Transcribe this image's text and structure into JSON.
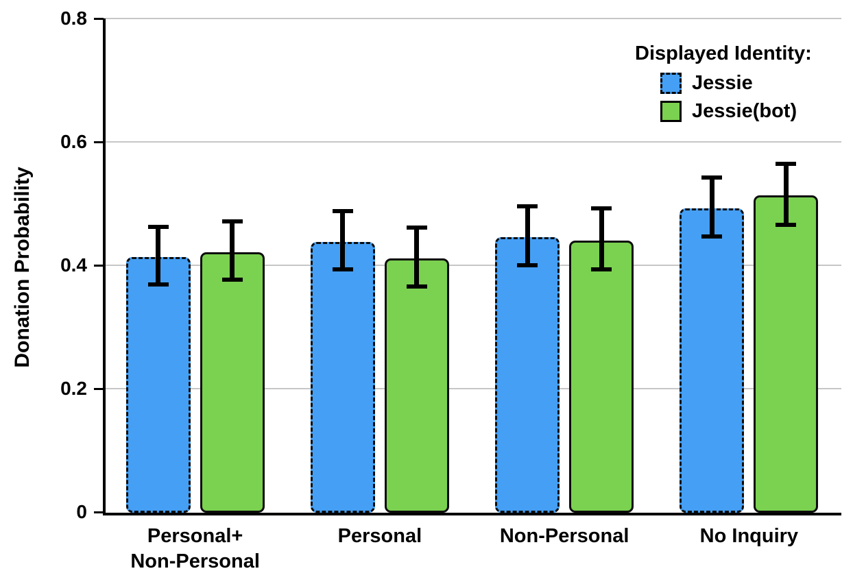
{
  "chart_data": {
    "type": "bar",
    "title": "",
    "xlabel": "",
    "ylabel": "Donation Probability",
    "ylim": [
      0,
      0.8
    ],
    "yticks": [
      0,
      0.2,
      0.4,
      0.6,
      0.8
    ],
    "ytick_labels": [
      "0",
      "0.2",
      "0.4",
      "0.6",
      "0.8"
    ],
    "grid": true,
    "grid_color": "#c6c6c6",
    "categories": [
      "Personal+\nNon-Personal",
      "Personal",
      "Non-Personal",
      "No Inquiry"
    ],
    "legend": {
      "title": "Displayed Identity:",
      "position": "top-right"
    },
    "series": [
      {
        "name": "Jessie",
        "color": "#459FF4",
        "border_color": "#0d0d0d",
        "border_style": "dashed",
        "values": [
          0.413,
          0.438,
          0.446,
          0.492
        ],
        "err_low": [
          0.369,
          0.393,
          0.4,
          0.447
        ],
        "err_high": [
          0.462,
          0.488,
          0.496,
          0.542
        ]
      },
      {
        "name": "Jessie(bot)",
        "color": "#7BD150",
        "border_color": "#0d0d0d",
        "border_style": "solid",
        "values": [
          0.421,
          0.411,
          0.44,
          0.513
        ],
        "err_low": [
          0.377,
          0.366,
          0.393,
          0.466
        ],
        "err_high": [
          0.471,
          0.461,
          0.492,
          0.565
        ]
      }
    ]
  }
}
